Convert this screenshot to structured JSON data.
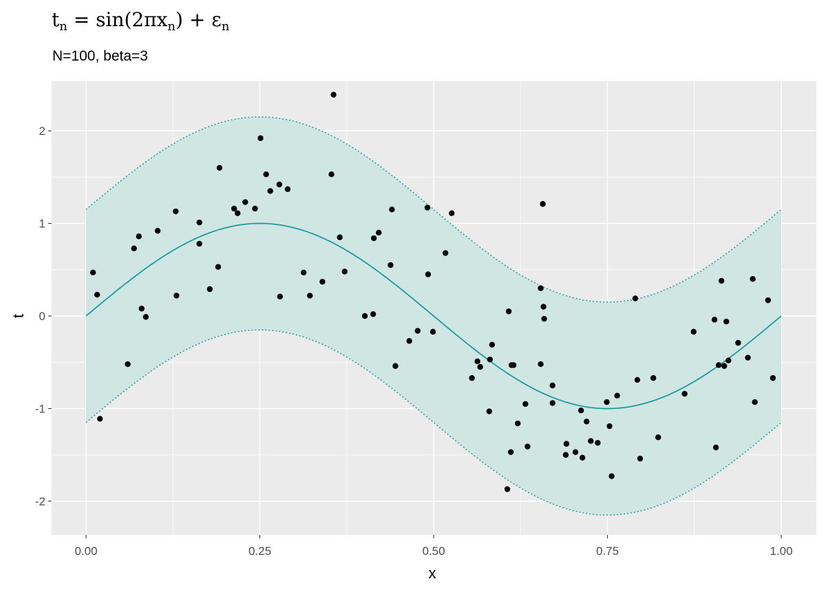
{
  "title": {
    "t": "t",
    "t_sub": "n",
    "eq": " = sin(2πx",
    "x_sub": "n",
    "rest": ") + ε",
    "eps_sub": "n"
  },
  "subtitle": "N=100, beta=3",
  "colors": {
    "panel": "#ebebeb",
    "grid_major": "#ffffff",
    "line": "#1b9aa0",
    "ribbon": "#cfe6e3",
    "points": "#000000"
  },
  "chart_data": {
    "type": "scatter",
    "title": "t_n = sin(2πx_n) + ε_n",
    "subtitle": "N=100, beta=3",
    "xlabel": "x",
    "ylabel": "t",
    "xlim": [
      0,
      1
    ],
    "ylim": [
      -2.4,
      2.5
    ],
    "x_ticks": [
      0.0,
      0.25,
      0.5,
      0.75,
      1.0
    ],
    "x_tick_labels": [
      "0.00",
      "0.25",
      "0.50",
      "0.75",
      "1.00"
    ],
    "y_ticks": [
      -2,
      -1,
      0,
      1,
      2
    ],
    "y_tick_labels": [
      "-2",
      "-1",
      "0",
      "1",
      "2"
    ],
    "grid": true,
    "curve": {
      "function": "sin(2*pi*x)",
      "band_halfwidth": 1.15
    },
    "points": [
      {
        "x": 0.01,
        "y": 0.47
      },
      {
        "x": 0.016,
        "y": 0.23
      },
      {
        "x": 0.02,
        "y": -1.11
      },
      {
        "x": 0.06,
        "y": -0.52
      },
      {
        "x": 0.069,
        "y": 0.73
      },
      {
        "x": 0.076,
        "y": 0.86
      },
      {
        "x": 0.08,
        "y": 0.08
      },
      {
        "x": 0.086,
        "y": -0.01
      },
      {
        "x": 0.103,
        "y": 0.92
      },
      {
        "x": 0.129,
        "y": 1.13
      },
      {
        "x": 0.13,
        "y": 0.22
      },
      {
        "x": 0.163,
        "y": 1.01
      },
      {
        "x": 0.163,
        "y": 0.78
      },
      {
        "x": 0.178,
        "y": 0.29
      },
      {
        "x": 0.19,
        "y": 0.53
      },
      {
        "x": 0.192,
        "y": 1.6
      },
      {
        "x": 0.213,
        "y": 1.16
      },
      {
        "x": 0.218,
        "y": 1.11
      },
      {
        "x": 0.229,
        "y": 1.23
      },
      {
        "x": 0.243,
        "y": 1.16
      },
      {
        "x": 0.251,
        "y": 1.92
      },
      {
        "x": 0.259,
        "y": 1.53
      },
      {
        "x": 0.265,
        "y": 1.35
      },
      {
        "x": 0.278,
        "y": 1.42
      },
      {
        "x": 0.279,
        "y": 0.21
      },
      {
        "x": 0.29,
        "y": 1.37
      },
      {
        "x": 0.313,
        "y": 0.47
      },
      {
        "x": 0.322,
        "y": 0.22
      },
      {
        "x": 0.34,
        "y": 0.37
      },
      {
        "x": 0.353,
        "y": 1.53
      },
      {
        "x": 0.356,
        "y": 2.39
      },
      {
        "x": 0.365,
        "y": 0.85
      },
      {
        "x": 0.372,
        "y": 0.48
      },
      {
        "x": 0.401,
        "y": 0.0
      },
      {
        "x": 0.413,
        "y": 0.02
      },
      {
        "x": 0.414,
        "y": 0.84
      },
      {
        "x": 0.421,
        "y": 0.9
      },
      {
        "x": 0.438,
        "y": 0.55
      },
      {
        "x": 0.44,
        "y": 1.15
      },
      {
        "x": 0.445,
        "y": -0.54
      },
      {
        "x": 0.465,
        "y": -0.27
      },
      {
        "x": 0.477,
        "y": -0.16
      },
      {
        "x": 0.491,
        "y": 1.17
      },
      {
        "x": 0.492,
        "y": 0.45
      },
      {
        "x": 0.499,
        "y": -0.17
      },
      {
        "x": 0.517,
        "y": 0.68
      },
      {
        "x": 0.526,
        "y": 1.11
      },
      {
        "x": 0.555,
        "y": -0.67
      },
      {
        "x": 0.563,
        "y": -0.49
      },
      {
        "x": 0.567,
        "y": -0.55
      },
      {
        "x": 0.58,
        "y": -1.03
      },
      {
        "x": 0.581,
        "y": -0.47
      },
      {
        "x": 0.584,
        "y": -0.31
      },
      {
        "x": 0.606,
        "y": -1.87
      },
      {
        "x": 0.608,
        "y": 0.05
      },
      {
        "x": 0.611,
        "y": -1.47
      },
      {
        "x": 0.612,
        "y": -0.53
      },
      {
        "x": 0.615,
        "y": -0.53
      },
      {
        "x": 0.621,
        "y": -1.16
      },
      {
        "x": 0.632,
        "y": -0.95
      },
      {
        "x": 0.635,
        "y": -1.41
      },
      {
        "x": 0.654,
        "y": 0.3
      },
      {
        "x": 0.654,
        "y": -0.52
      },
      {
        "x": 0.657,
        "y": 1.21
      },
      {
        "x": 0.658,
        "y": 0.1
      },
      {
        "x": 0.659,
        "y": -0.03
      },
      {
        "x": 0.671,
        "y": -0.75
      },
      {
        "x": 0.671,
        "y": -0.94
      },
      {
        "x": 0.69,
        "y": -1.5
      },
      {
        "x": 0.691,
        "y": -1.38
      },
      {
        "x": 0.704,
        "y": -1.47
      },
      {
        "x": 0.712,
        "y": -1.02
      },
      {
        "x": 0.714,
        "y": -1.53
      },
      {
        "x": 0.72,
        "y": -1.14
      },
      {
        "x": 0.726,
        "y": -1.35
      },
      {
        "x": 0.736,
        "y": -1.37
      },
      {
        "x": 0.749,
        "y": -0.93
      },
      {
        "x": 0.753,
        "y": -1.19
      },
      {
        "x": 0.756,
        "y": -1.73
      },
      {
        "x": 0.764,
        "y": -0.86
      },
      {
        "x": 0.79,
        "y": 0.19
      },
      {
        "x": 0.793,
        "y": -0.69
      },
      {
        "x": 0.797,
        "y": -1.54
      },
      {
        "x": 0.816,
        "y": -0.67
      },
      {
        "x": 0.823,
        "y": -1.31
      },
      {
        "x": 0.861,
        "y": -0.84
      },
      {
        "x": 0.874,
        "y": -0.17
      },
      {
        "x": 0.904,
        "y": -0.04
      },
      {
        "x": 0.906,
        "y": -1.42
      },
      {
        "x": 0.91,
        "y": -0.53
      },
      {
        "x": 0.914,
        "y": 0.38
      },
      {
        "x": 0.918,
        "y": -0.54
      },
      {
        "x": 0.921,
        "y": -0.06
      },
      {
        "x": 0.924,
        "y": -0.48
      },
      {
        "x": 0.938,
        "y": -0.29
      },
      {
        "x": 0.952,
        "y": -0.45
      },
      {
        "x": 0.959,
        "y": 0.4
      },
      {
        "x": 0.962,
        "y": -0.93
      },
      {
        "x": 0.981,
        "y": 0.17
      },
      {
        "x": 0.988,
        "y": -0.67
      }
    ]
  }
}
